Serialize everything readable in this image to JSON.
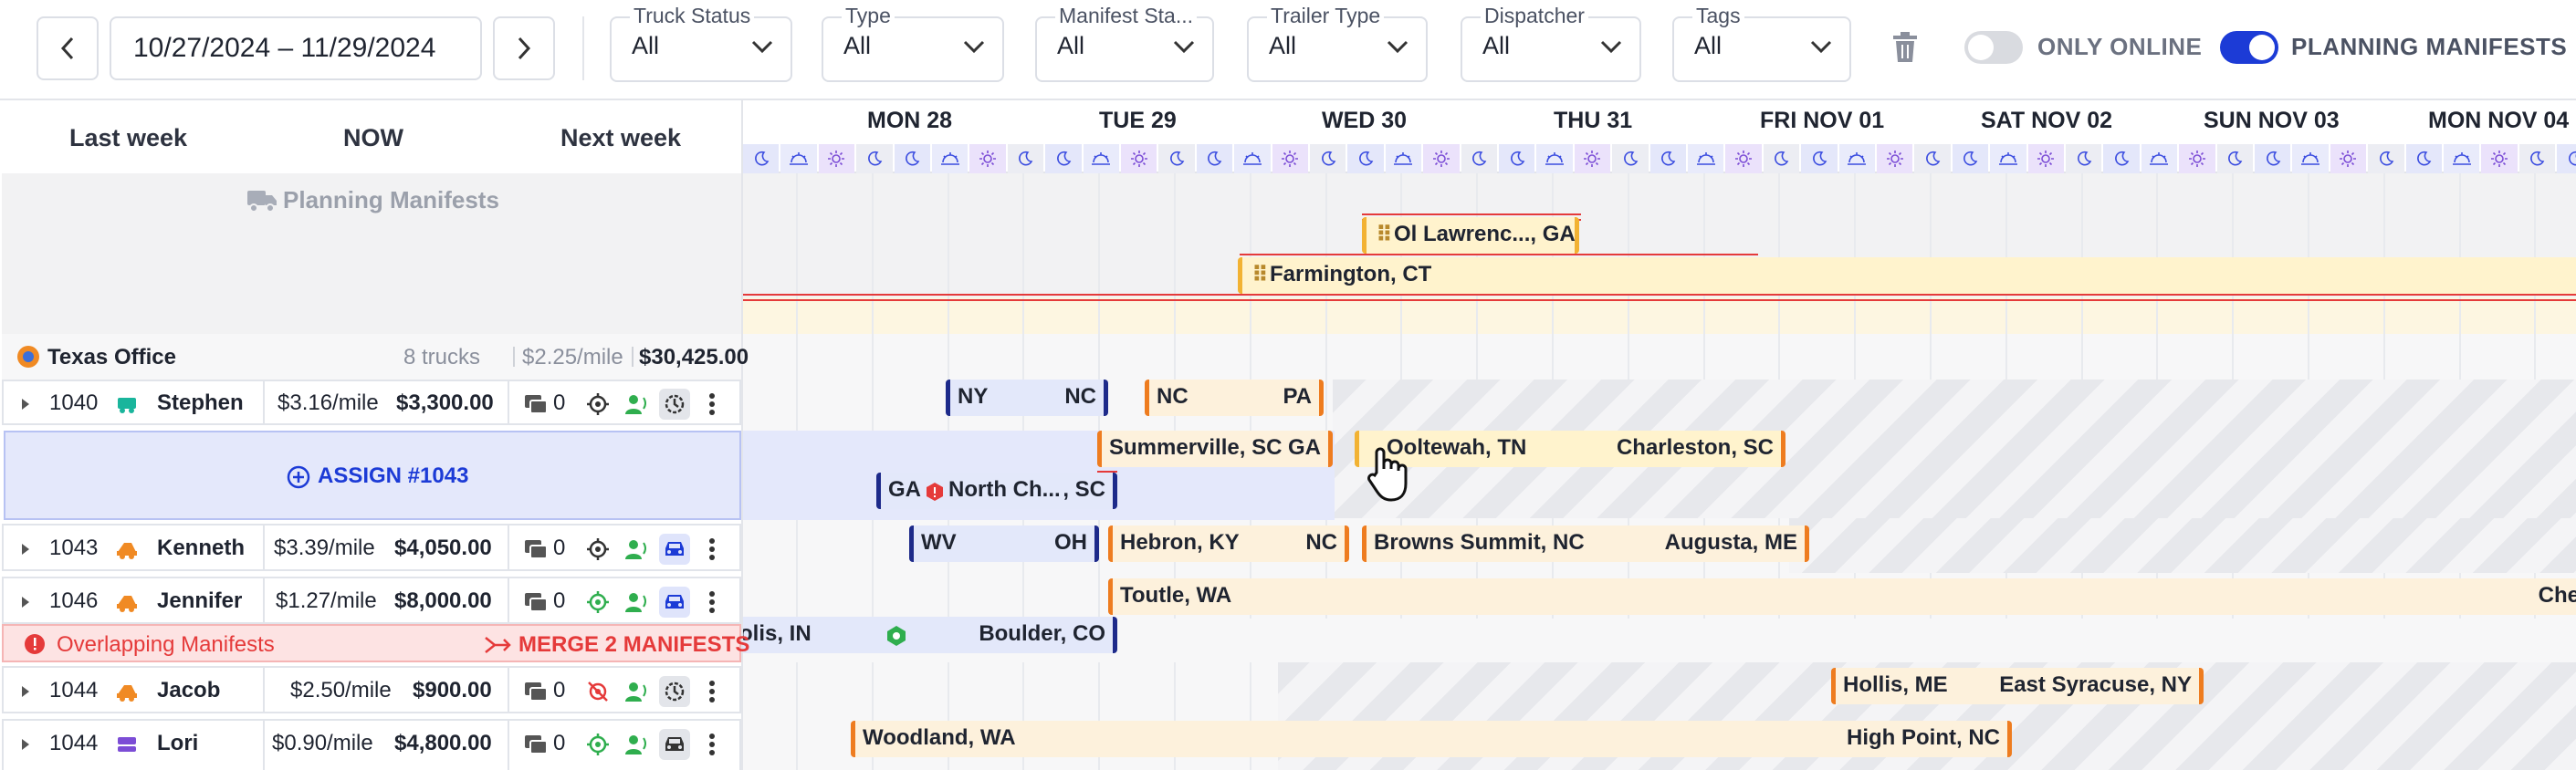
{
  "toolbar": {
    "date_range": "10/27/2024 – 11/29/2024",
    "filters": [
      {
        "label": "Truck Status",
        "value": "All"
      },
      {
        "label": "Type",
        "value": "All"
      },
      {
        "label": "Manifest Sta...",
        "value": "All"
      },
      {
        "label": "Trailer Type",
        "value": "All"
      },
      {
        "label": "Dispatcher",
        "value": "All"
      },
      {
        "label": "Tags",
        "value": "All"
      }
    ],
    "only_online_label": "ONLY ONLINE",
    "only_online": false,
    "planning_manifests_label": "PLANNING MANIFESTS",
    "planning_manifests": true,
    "colors": {
      "accent": "#1c3bd6",
      "border": "#dcdfe6"
    }
  },
  "nav": {
    "last_week": "Last week",
    "now": "NOW",
    "next_week": "Next week"
  },
  "planning": {
    "title": "Planning Manifests",
    "cards": [
      {
        "text": "Ol Lawrenc..., GA"
      },
      {
        "text": "Farmington, CT"
      }
    ]
  },
  "office": {
    "name": "Texas Office",
    "trucks": "8 trucks",
    "rate": "$2.25/mile",
    "total": "$30,425.00"
  },
  "days": [
    "MON 28",
    "TUE 29",
    "WED 30",
    "THU 31",
    "FRI NOV 01",
    "SAT NOV 02",
    "SUN NOV 03",
    "MON NOV 04"
  ],
  "trucks": [
    {
      "id": "1040",
      "driver": "Stephen",
      "rate": "$3.16/mile",
      "total": "$3,300.00",
      "messages": "0"
    },
    {
      "id": "1043",
      "driver": "Kenneth",
      "rate": "$3.39/mile",
      "total": "$4,050.00",
      "messages": "0"
    },
    {
      "id": "1046",
      "driver": "Jennifer",
      "rate": "$1.27/mile",
      "total": "$8,000.00",
      "messages": "0"
    },
    {
      "id": "1044",
      "driver": "Jacob",
      "rate": "$2.50/mile",
      "total": "$900.00",
      "messages": "0"
    },
    {
      "id": "1044",
      "driver": "Lori",
      "rate": "$0.90/mile",
      "total": "$4,800.00",
      "messages": "0"
    }
  ],
  "assign": {
    "label": "ASSIGN #1043"
  },
  "overlap": {
    "label": "Overlapping Manifests",
    "merge": "MERGE 2 MANIFESTS"
  },
  "manifests": {
    "stephen": [
      {
        "from": "NY",
        "to": "NC"
      },
      {
        "from": "NC",
        "to": "PA"
      }
    ],
    "assign_row": [
      {
        "from": "Summerville, SC",
        "to": "GA"
      },
      {
        "from": "Ooltewah, TN",
        "to": "Charleston, SC"
      },
      {
        "from": "GA",
        "mid": "North Ch...",
        "to": ", SC"
      }
    ],
    "kenneth": [
      {
        "from": "WV",
        "to": "OH"
      },
      {
        "from": "Hebron, KY",
        "to": "NC"
      },
      {
        "from": "Browns Summit, NC",
        "to": "Augusta, ME"
      }
    ],
    "jennifer": [
      {
        "from": "Toutle, WA",
        "to": "Che"
      },
      {
        "from": "olis, IN",
        "to": "Boulder, CO"
      }
    ],
    "jacob": [
      {
        "from": "Hollis, ME",
        "to": "East Syracuse, NY"
      }
    ],
    "lori": [
      {
        "from": "Woodland, WA",
        "to": "High Point, NC"
      }
    ]
  }
}
